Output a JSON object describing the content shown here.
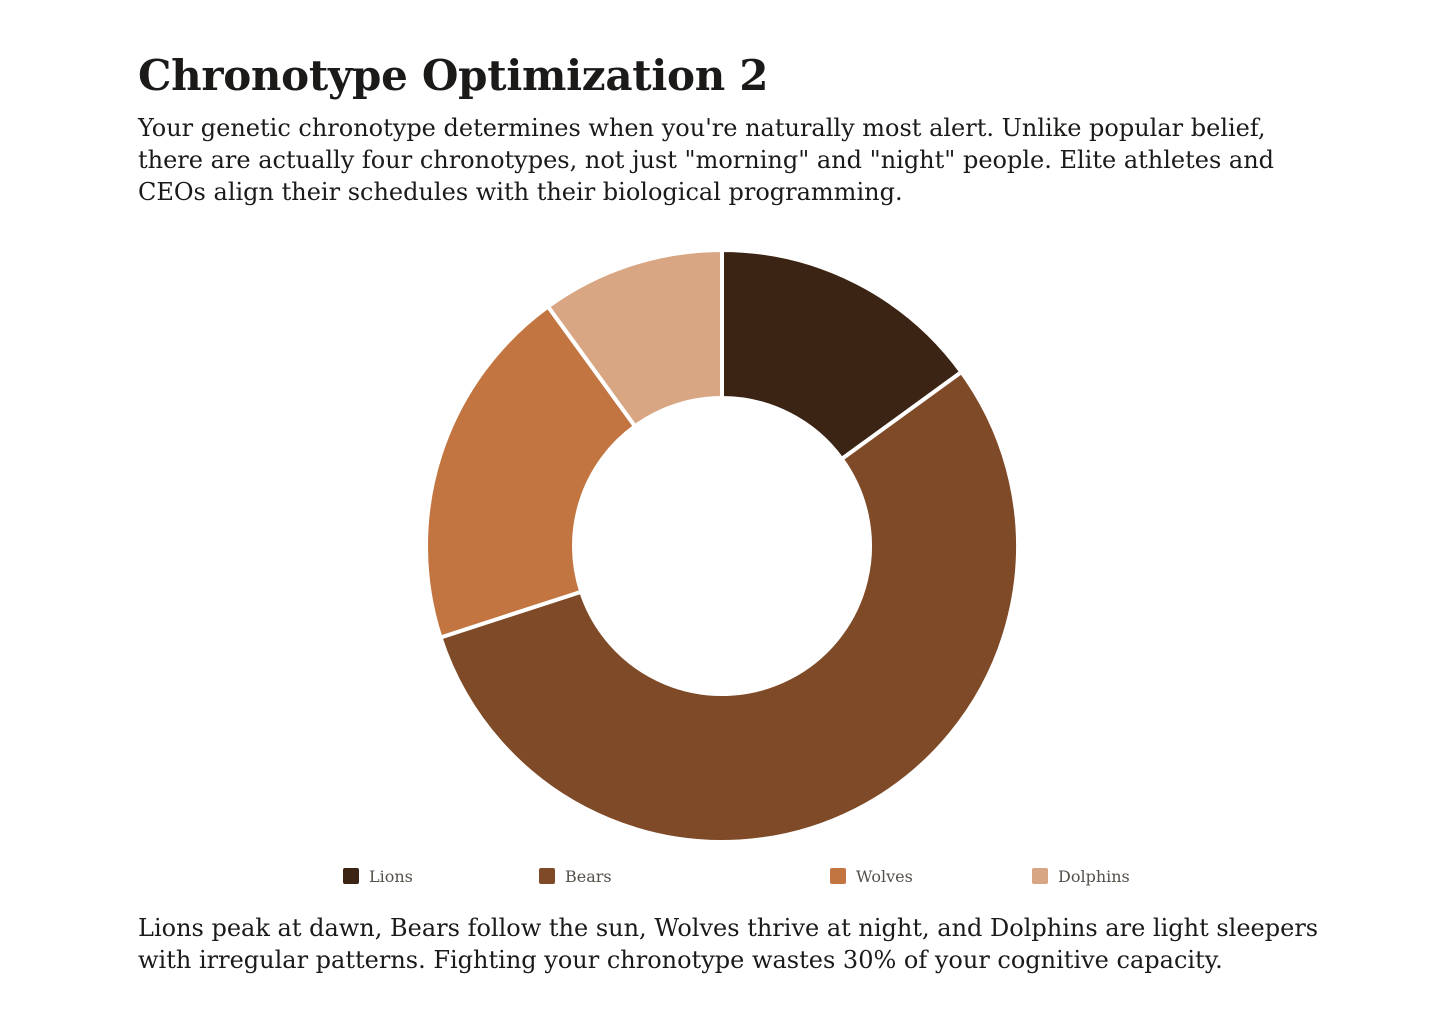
{
  "page": {
    "title": "Chronotype Optimization 2",
    "intro": "Your genetic chronotype determines when you're naturally most alert. Unlike popular belief, there are actually four chronotypes, not just \"morning\" and \"night\" people. Elite athletes and CEOs align their schedules with their biological programming.",
    "outro": "Lions peak at dawn, Bears follow the sun, Wolves thrive at night, and Dolphins are light sleepers with irregular patterns. Fighting your chronotype wastes 30% of your cognitive capacity."
  },
  "chart_data": {
    "type": "pie",
    "variant": "doughnut",
    "title": "",
    "categories": [
      "Lions",
      "Bears",
      "Wolves",
      "Dolphins"
    ],
    "values": [
      15,
      55,
      20,
      10
    ],
    "colors": [
      "#3c2415",
      "#7f4a27",
      "#c27540",
      "#d8a683"
    ],
    "legend_position": "bottom"
  }
}
